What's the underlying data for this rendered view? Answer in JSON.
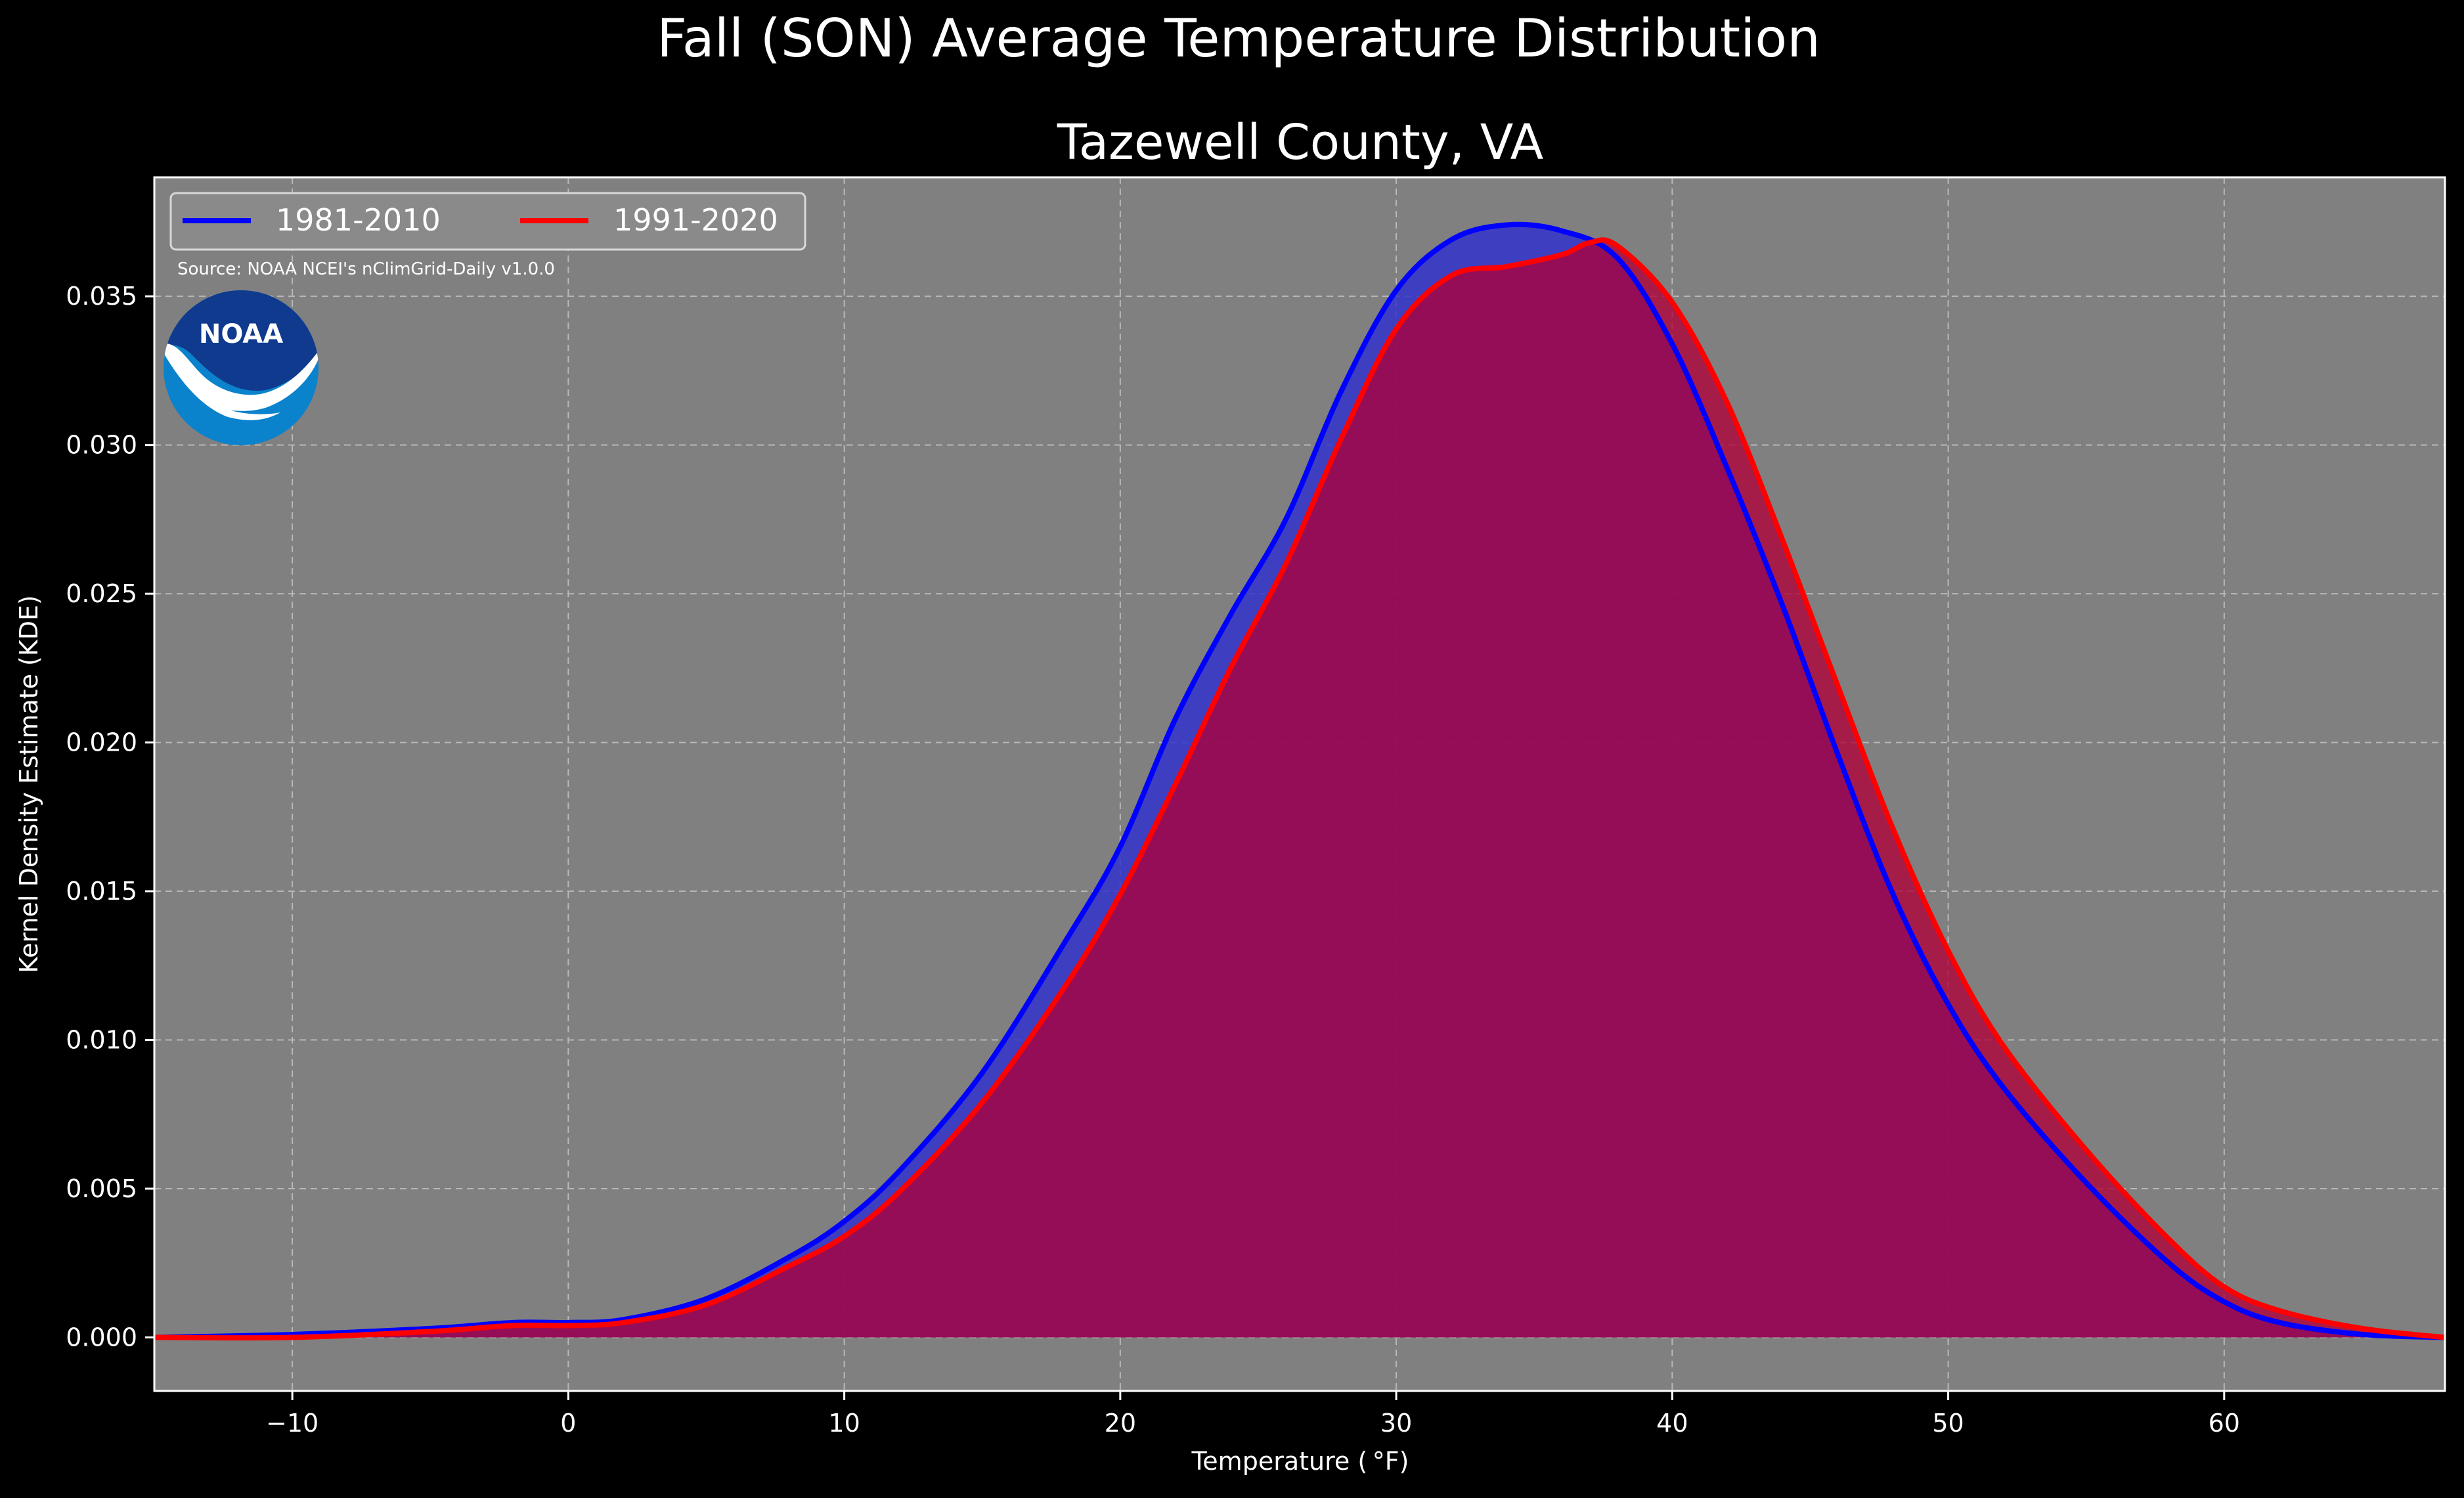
{
  "chart_data": {
    "type": "area",
    "title": "Fall (SON) Average Temperature Distribution",
    "subtitle": "Tazewell County, VA",
    "xlabel": "Temperature ( °F)",
    "ylabel": "Kernel Density Estimate (KDE)",
    "xlim": [
      -15,
      68
    ],
    "ylim": [
      -0.0018,
      0.039
    ],
    "x_ticks": [
      -10,
      0,
      10,
      20,
      30,
      40,
      50,
      60
    ],
    "x_tick_labels": [
      "−10",
      "0",
      "10",
      "20",
      "30",
      "40",
      "50",
      "60"
    ],
    "y_ticks": [
      0.0,
      0.005,
      0.01,
      0.015,
      0.02,
      0.025,
      0.03,
      0.035
    ],
    "y_tick_labels": [
      "0.000",
      "0.005",
      "0.010",
      "0.015",
      "0.020",
      "0.025",
      "0.030",
      "0.035"
    ],
    "grid": true,
    "legend_position": "top-left",
    "source_note": "Source: NOAA NCEI's nClimGrid-Daily v1.0.0",
    "logo_text": "NOAA",
    "colors": {
      "background": "#000000",
      "plot_bg": "#808080",
      "series_1981": "#0000ff",
      "series_1991": "#ff0000",
      "fill_1981": "#3333cc",
      "fill_1991": "#b0003a"
    },
    "series": [
      {
        "name": "1981-2010",
        "x": [
          -15,
          -10,
          -5,
          -2,
          0,
          2,
          5,
          8,
          10,
          12,
          15,
          18,
          20,
          22,
          24,
          26,
          28,
          30,
          32,
          34,
          36,
          38,
          40,
          42,
          44,
          46,
          48,
          50,
          52,
          55,
          58,
          60,
          62,
          65,
          68
        ],
        "y": [
          0.0,
          0.0001,
          0.0003,
          0.0005,
          0.0005,
          0.0006,
          0.0013,
          0.0027,
          0.0039,
          0.0056,
          0.0089,
          0.0133,
          0.0165,
          0.0208,
          0.0243,
          0.0275,
          0.0318,
          0.0352,
          0.0369,
          0.0374,
          0.0372,
          0.0363,
          0.0334,
          0.0292,
          0.0246,
          0.0196,
          0.0149,
          0.0112,
          0.0084,
          0.0052,
          0.0025,
          0.0012,
          0.0005,
          0.0001,
          0.0
        ]
      },
      {
        "name": "1991-2020",
        "x": [
          -15,
          -10,
          -5,
          -2,
          0,
          2,
          5,
          8,
          10,
          12,
          15,
          18,
          20,
          22,
          24,
          26,
          28,
          30,
          32,
          34,
          36,
          37,
          38,
          40,
          42,
          44,
          46,
          48,
          50,
          52,
          55,
          58,
          60,
          62,
          65,
          68
        ],
        "y": [
          0.0,
          0.0,
          0.0002,
          0.0004,
          0.0004,
          0.0005,
          0.0011,
          0.0024,
          0.0034,
          0.0049,
          0.0079,
          0.0118,
          0.0149,
          0.0186,
          0.0225,
          0.026,
          0.0302,
          0.0339,
          0.0357,
          0.036,
          0.0364,
          0.0368,
          0.0367,
          0.0348,
          0.0314,
          0.0268,
          0.0219,
          0.0171,
          0.013,
          0.0098,
          0.0063,
          0.0033,
          0.0017,
          0.0009,
          0.0003,
          0.0
        ]
      }
    ]
  }
}
